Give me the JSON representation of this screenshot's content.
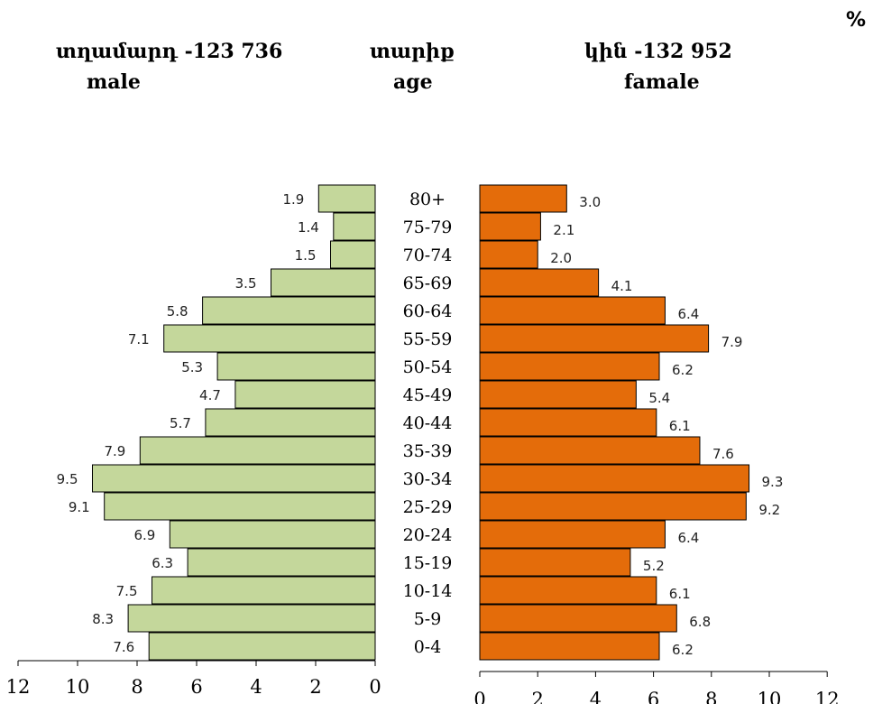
{
  "header": {
    "percent_sign": "%",
    "male_title": "տղամարդ  -123 736",
    "male_subtitle": "male",
    "age_title": "տարիք",
    "age_subtitle": "age",
    "female_title": "կին -132 952",
    "female_subtitle": "famale"
  },
  "colors": {
    "male": "#c4d79b",
    "female": "#e46c0a",
    "bar_border": "#000000"
  },
  "chart_data": {
    "type": "bar",
    "orientation": "horizontal",
    "subtype": "population-pyramid",
    "categories": [
      "80+",
      "75-79",
      "70-74",
      "65-69",
      "60-64",
      "55-59",
      "50-54",
      "45-49",
      "40-44",
      "35-39",
      "30-34",
      "25-29",
      "20-24",
      "15-19",
      "10-14",
      "5-9",
      "0-4"
    ],
    "series": [
      {
        "name": "male",
        "values": [
          1.9,
          1.4,
          1.5,
          3.5,
          5.8,
          7.1,
          5.3,
          4.7,
          5.7,
          7.9,
          9.5,
          9.1,
          6.9,
          6.3,
          7.5,
          8.3,
          7.6
        ]
      },
      {
        "name": "famale",
        "values": [
          3.0,
          2.1,
          2.0,
          4.1,
          6.4,
          7.9,
          6.2,
          5.4,
          6.1,
          7.6,
          9.3,
          9.2,
          6.4,
          5.2,
          6.1,
          6.8,
          6.2
        ]
      }
    ],
    "male_labels": [
      "1.9",
      "1.4",
      "1.5",
      "3.5",
      "5.8",
      "7.1",
      "5.3",
      "4.7",
      "5.7",
      "7.9",
      "9.5",
      "9.1",
      "6.9",
      "6.3",
      "7.5",
      "8.3",
      "7.6"
    ],
    "female_labels": [
      "3.0",
      "2.1",
      "2.0",
      "4.1",
      "6.4",
      "7.9",
      "6.2",
      "5.4",
      "6.1",
      "7.6",
      "9.3",
      "9.2",
      "6.4",
      "5.2",
      "6.1",
      "6.8",
      "6.2"
    ],
    "male_xlim": [
      12,
      0
    ],
    "female_xlim": [
      0,
      12
    ],
    "male_ticks": [
      "12",
      "10",
      "8",
      "6",
      "4",
      "2",
      "0"
    ],
    "female_ticks": [
      "0",
      "2",
      "4",
      "6",
      "8",
      "10",
      "12"
    ],
    "unit": "%",
    "grid": false,
    "legend": "none"
  }
}
